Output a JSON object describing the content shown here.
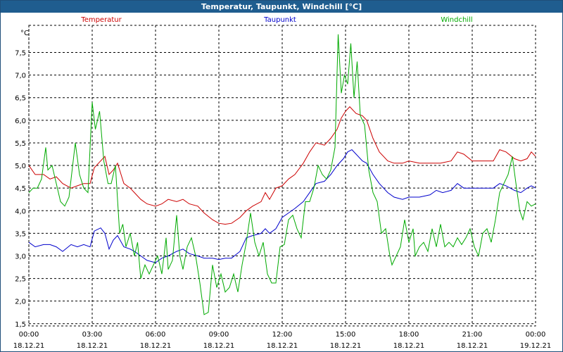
{
  "window": {
    "title": "Temperatur, Taupunkt, Windchill [°C]"
  },
  "chart_data": {
    "type": "line",
    "ylabel": "°C",
    "ylim": [
      1.45,
      8.1
    ],
    "yticks": [
      1.5,
      2.0,
      2.5,
      3.0,
      3.5,
      4.0,
      4.5,
      5.0,
      5.5,
      6.0,
      6.5,
      7.0,
      7.5
    ],
    "ytick_labels": [
      "1,5",
      "2,0",
      "2,5",
      "3,0",
      "3,5",
      "4,0",
      "4,5",
      "5,0",
      "5,5",
      "6,0",
      "6,5",
      "7,0",
      "7,5"
    ],
    "xlim": [
      0,
      24
    ],
    "xticks": [
      0,
      3,
      6,
      9,
      12,
      15,
      18,
      21,
      24
    ],
    "xtick_labels": [
      {
        "time": "00:00",
        "date": "18.12.21"
      },
      {
        "time": "03:00",
        "date": "18.12.21"
      },
      {
        "time": "06:00",
        "date": "18.12.21"
      },
      {
        "time": "09:00",
        "date": "18.12.21"
      },
      {
        "time": "12:00",
        "date": "18.12.21"
      },
      {
        "time": "15:00",
        "date": "18.12.21"
      },
      {
        "time": "18:00",
        "date": "18.12.21"
      },
      {
        "time": "21:00",
        "date": "18.12.21"
      },
      {
        "time": "00:00",
        "date": "19.12.21"
      }
    ],
    "grid": true,
    "legend": "top",
    "series": [
      {
        "name": "Temperatur",
        "color": "#cc0000",
        "points": [
          [
            0.0,
            5.0
          ],
          [
            0.3,
            4.8
          ],
          [
            0.7,
            4.8
          ],
          [
            1.0,
            4.7
          ],
          [
            1.3,
            4.75
          ],
          [
            1.6,
            4.6
          ],
          [
            2.0,
            4.5
          ],
          [
            2.3,
            4.55
          ],
          [
            2.6,
            4.6
          ],
          [
            2.9,
            4.6
          ],
          [
            3.1,
            4.95
          ],
          [
            3.3,
            5.05
          ],
          [
            3.6,
            5.2
          ],
          [
            3.8,
            4.8
          ],
          [
            4.0,
            4.9
          ],
          [
            4.2,
            5.05
          ],
          [
            4.5,
            4.6
          ],
          [
            4.8,
            4.5
          ],
          [
            5.0,
            4.4
          ],
          [
            5.3,
            4.25
          ],
          [
            5.6,
            4.15
          ],
          [
            6.0,
            4.1
          ],
          [
            6.3,
            4.15
          ],
          [
            6.6,
            4.25
          ],
          [
            7.0,
            4.2
          ],
          [
            7.3,
            4.25
          ],
          [
            7.6,
            4.15
          ],
          [
            8.0,
            4.1
          ],
          [
            8.3,
            3.95
          ],
          [
            8.7,
            3.8
          ],
          [
            9.0,
            3.72
          ],
          [
            9.3,
            3.7
          ],
          [
            9.6,
            3.72
          ],
          [
            10.0,
            3.85
          ],
          [
            10.3,
            4.0
          ],
          [
            10.6,
            4.1
          ],
          [
            11.0,
            4.2
          ],
          [
            11.2,
            4.4
          ],
          [
            11.4,
            4.25
          ],
          [
            11.7,
            4.5
          ],
          [
            12.0,
            4.55
          ],
          [
            12.3,
            4.7
          ],
          [
            12.6,
            4.8
          ],
          [
            13.0,
            5.05
          ],
          [
            13.3,
            5.3
          ],
          [
            13.6,
            5.5
          ],
          [
            14.0,
            5.45
          ],
          [
            14.3,
            5.6
          ],
          [
            14.6,
            5.8
          ],
          [
            14.8,
            6.05
          ],
          [
            15.0,
            6.2
          ],
          [
            15.2,
            6.3
          ],
          [
            15.5,
            6.15
          ],
          [
            15.8,
            6.1
          ],
          [
            16.0,
            6.0
          ],
          [
            16.3,
            5.6
          ],
          [
            16.6,
            5.3
          ],
          [
            17.0,
            5.1
          ],
          [
            17.3,
            5.05
          ],
          [
            17.7,
            5.05
          ],
          [
            18.0,
            5.1
          ],
          [
            18.5,
            5.05
          ],
          [
            19.0,
            5.05
          ],
          [
            19.5,
            5.05
          ],
          [
            20.0,
            5.1
          ],
          [
            20.3,
            5.3
          ],
          [
            20.6,
            5.25
          ],
          [
            21.0,
            5.1
          ],
          [
            21.5,
            5.1
          ],
          [
            22.0,
            5.1
          ],
          [
            22.3,
            5.35
          ],
          [
            22.6,
            5.3
          ],
          [
            23.0,
            5.15
          ],
          [
            23.3,
            5.1
          ],
          [
            23.6,
            5.15
          ],
          [
            23.8,
            5.3
          ],
          [
            24.0,
            5.2
          ]
        ]
      },
      {
        "name": "Taupunkt",
        "color": "#0000cc",
        "points": [
          [
            0.0,
            3.3
          ],
          [
            0.3,
            3.2
          ],
          [
            0.7,
            3.25
          ],
          [
            1.0,
            3.25
          ],
          [
            1.3,
            3.2
          ],
          [
            1.6,
            3.1
          ],
          [
            2.0,
            3.25
          ],
          [
            2.3,
            3.2
          ],
          [
            2.6,
            3.25
          ],
          [
            2.9,
            3.2
          ],
          [
            3.1,
            3.55
          ],
          [
            3.4,
            3.62
          ],
          [
            3.6,
            3.5
          ],
          [
            3.8,
            3.15
          ],
          [
            4.0,
            3.35
          ],
          [
            4.2,
            3.45
          ],
          [
            4.5,
            3.2
          ],
          [
            4.8,
            3.15
          ],
          [
            5.0,
            3.1
          ],
          [
            5.3,
            3.0
          ],
          [
            5.6,
            2.9
          ],
          [
            6.0,
            2.85
          ],
          [
            6.3,
            2.95
          ],
          [
            6.6,
            3.0
          ],
          [
            7.0,
            3.1
          ],
          [
            7.3,
            3.15
          ],
          [
            7.6,
            3.05
          ],
          [
            8.0,
            3.0
          ],
          [
            8.3,
            2.95
          ],
          [
            8.7,
            2.95
          ],
          [
            9.0,
            2.92
          ],
          [
            9.3,
            2.95
          ],
          [
            9.6,
            2.95
          ],
          [
            10.0,
            3.1
          ],
          [
            10.3,
            3.4
          ],
          [
            10.6,
            3.45
          ],
          [
            11.0,
            3.5
          ],
          [
            11.2,
            3.6
          ],
          [
            11.4,
            3.5
          ],
          [
            11.7,
            3.6
          ],
          [
            12.0,
            3.85
          ],
          [
            12.3,
            3.95
          ],
          [
            12.6,
            4.05
          ],
          [
            13.0,
            4.2
          ],
          [
            13.3,
            4.4
          ],
          [
            13.6,
            4.6
          ],
          [
            14.0,
            4.65
          ],
          [
            14.3,
            4.8
          ],
          [
            14.6,
            5.0
          ],
          [
            14.9,
            5.15
          ],
          [
            15.1,
            5.3
          ],
          [
            15.3,
            5.35
          ],
          [
            15.5,
            5.25
          ],
          [
            15.8,
            5.1
          ],
          [
            16.0,
            5.05
          ],
          [
            16.3,
            4.8
          ],
          [
            16.6,
            4.6
          ],
          [
            17.0,
            4.4
          ],
          [
            17.3,
            4.3
          ],
          [
            17.7,
            4.25
          ],
          [
            18.0,
            4.3
          ],
          [
            18.5,
            4.3
          ],
          [
            19.0,
            4.35
          ],
          [
            19.3,
            4.45
          ],
          [
            19.6,
            4.4
          ],
          [
            20.0,
            4.45
          ],
          [
            20.3,
            4.6
          ],
          [
            20.6,
            4.5
          ],
          [
            21.0,
            4.5
          ],
          [
            21.5,
            4.5
          ],
          [
            22.0,
            4.5
          ],
          [
            22.3,
            4.6
          ],
          [
            22.6,
            4.55
          ],
          [
            23.0,
            4.45
          ],
          [
            23.3,
            4.4
          ],
          [
            23.6,
            4.5
          ],
          [
            23.8,
            4.55
          ],
          [
            24.0,
            4.5
          ]
        ]
      },
      {
        "name": "Windchill",
        "color": "#00aa00",
        "points": [
          [
            0.0,
            4.4
          ],
          [
            0.2,
            4.5
          ],
          [
            0.4,
            4.5
          ],
          [
            0.6,
            4.7
          ],
          [
            0.8,
            5.4
          ],
          [
            0.9,
            4.9
          ],
          [
            1.1,
            5.0
          ],
          [
            1.3,
            4.6
          ],
          [
            1.5,
            4.2
          ],
          [
            1.7,
            4.1
          ],
          [
            1.9,
            4.3
          ],
          [
            2.2,
            5.5
          ],
          [
            2.4,
            4.8
          ],
          [
            2.6,
            4.5
          ],
          [
            2.8,
            4.4
          ],
          [
            3.0,
            6.4
          ],
          [
            3.15,
            5.8
          ],
          [
            3.35,
            6.2
          ],
          [
            3.55,
            5.1
          ],
          [
            3.75,
            4.6
          ],
          [
            3.9,
            4.6
          ],
          [
            4.1,
            5.0
          ],
          [
            4.3,
            3.5
          ],
          [
            4.45,
            3.7
          ],
          [
            4.6,
            3.2
          ],
          [
            4.8,
            3.5
          ],
          [
            5.0,
            3.0
          ],
          [
            5.15,
            3.3
          ],
          [
            5.3,
            2.5
          ],
          [
            5.5,
            2.8
          ],
          [
            5.7,
            2.6
          ],
          [
            5.9,
            2.8
          ],
          [
            6.1,
            3.0
          ],
          [
            6.3,
            2.6
          ],
          [
            6.5,
            3.4
          ],
          [
            6.6,
            2.7
          ],
          [
            6.8,
            2.9
          ],
          [
            7.0,
            3.9
          ],
          [
            7.15,
            3.0
          ],
          [
            7.3,
            2.7
          ],
          [
            7.5,
            3.2
          ],
          [
            7.7,
            3.4
          ],
          [
            7.9,
            3.0
          ],
          [
            8.1,
            2.4
          ],
          [
            8.3,
            1.7
          ],
          [
            8.5,
            1.75
          ],
          [
            8.7,
            2.8
          ],
          [
            8.9,
            2.3
          ],
          [
            9.1,
            2.6
          ],
          [
            9.3,
            2.2
          ],
          [
            9.5,
            2.3
          ],
          [
            9.7,
            2.6
          ],
          [
            9.9,
            2.2
          ],
          [
            10.1,
            2.8
          ],
          [
            10.3,
            3.3
          ],
          [
            10.5,
            3.95
          ],
          [
            10.7,
            3.3
          ],
          [
            10.9,
            3.0
          ],
          [
            11.1,
            3.3
          ],
          [
            11.3,
            2.6
          ],
          [
            11.5,
            2.4
          ],
          [
            11.7,
            2.4
          ],
          [
            11.9,
            3.2
          ],
          [
            12.1,
            3.25
          ],
          [
            12.3,
            3.8
          ],
          [
            12.5,
            3.9
          ],
          [
            12.7,
            3.6
          ],
          [
            12.9,
            3.4
          ],
          [
            13.1,
            4.2
          ],
          [
            13.3,
            4.2
          ],
          [
            13.5,
            4.5
          ],
          [
            13.7,
            5.0
          ],
          [
            13.9,
            4.8
          ],
          [
            14.1,
            4.7
          ],
          [
            14.3,
            4.9
          ],
          [
            14.5,
            5.4
          ],
          [
            14.65,
            7.9
          ],
          [
            14.8,
            6.6
          ],
          [
            14.95,
            7.0
          ],
          [
            15.1,
            6.8
          ],
          [
            15.25,
            7.7
          ],
          [
            15.4,
            6.5
          ],
          [
            15.55,
            7.3
          ],
          [
            15.7,
            6.1
          ],
          [
            15.9,
            5.9
          ],
          [
            16.1,
            4.9
          ],
          [
            16.3,
            4.4
          ],
          [
            16.5,
            4.2
          ],
          [
            16.7,
            3.5
          ],
          [
            16.9,
            3.6
          ],
          [
            17.1,
            3.0
          ],
          [
            17.2,
            2.8
          ],
          [
            17.4,
            3.0
          ],
          [
            17.6,
            3.2
          ],
          [
            17.8,
            3.8
          ],
          [
            18.0,
            3.3
          ],
          [
            18.2,
            3.6
          ],
          [
            18.3,
            3.0
          ],
          [
            18.5,
            3.2
          ],
          [
            18.7,
            3.3
          ],
          [
            18.9,
            3.1
          ],
          [
            19.1,
            3.6
          ],
          [
            19.3,
            3.2
          ],
          [
            19.5,
            3.7
          ],
          [
            19.7,
            3.2
          ],
          [
            19.9,
            3.3
          ],
          [
            20.1,
            3.2
          ],
          [
            20.3,
            3.4
          ],
          [
            20.5,
            3.25
          ],
          [
            20.7,
            3.4
          ],
          [
            20.9,
            3.6
          ],
          [
            21.1,
            3.2
          ],
          [
            21.3,
            3.0
          ],
          [
            21.5,
            3.5
          ],
          [
            21.7,
            3.6
          ],
          [
            21.9,
            3.3
          ],
          [
            22.1,
            3.8
          ],
          [
            22.3,
            4.4
          ],
          [
            22.5,
            4.6
          ],
          [
            22.7,
            4.8
          ],
          [
            22.9,
            5.2
          ],
          [
            23.1,
            4.5
          ],
          [
            23.25,
            4.0
          ],
          [
            23.4,
            3.8
          ],
          [
            23.6,
            4.2
          ],
          [
            23.8,
            4.1
          ],
          [
            24.0,
            4.15
          ],
          [
            24.2,
            4.05
          ],
          [
            24.35,
            4.6
          ],
          [
            24.5,
            4.2
          ]
        ]
      }
    ]
  }
}
